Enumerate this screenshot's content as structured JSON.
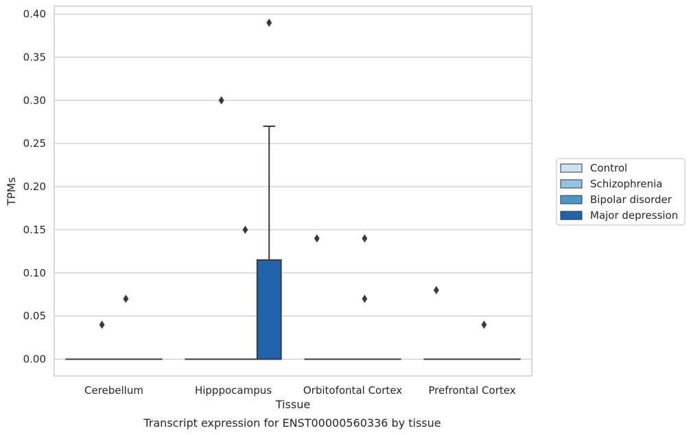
{
  "chart_data": {
    "type": "box",
    "title": "",
    "caption": "Transcript expression for ENST00000560336 by tissue",
    "xlabel": "Tissue",
    "ylabel": "TPMs",
    "ylim": [
      -0.02,
      0.41
    ],
    "yticks": [
      "0.00",
      "0.05",
      "0.10",
      "0.15",
      "0.20",
      "0.25",
      "0.30",
      "0.35",
      "0.40"
    ],
    "grid": true,
    "legend_position": "right",
    "categories": [
      "Cerebellum",
      "Hipppocampus",
      "Orbitofontal Cortex",
      "Prefrontal Cortex"
    ],
    "series": [
      {
        "name": "Control",
        "color": "#d0e1f2",
        "boxes": [
          {
            "min": 0,
            "q1": 0,
            "median": 0,
            "q3": 0,
            "max": 0,
            "outliers": []
          },
          {
            "min": 0,
            "q1": 0,
            "median": 0,
            "q3": 0,
            "max": 0,
            "outliers": []
          },
          {
            "min": 0,
            "q1": 0,
            "median": 0,
            "q3": 0,
            "max": 0,
            "outliers": [
              0.14
            ]
          },
          {
            "min": 0,
            "q1": 0,
            "median": 0,
            "q3": 0,
            "max": 0,
            "outliers": [
              0.08
            ]
          }
        ]
      },
      {
        "name": "Schizophrenia",
        "color": "#94c4df",
        "boxes": [
          {
            "min": 0,
            "q1": 0,
            "median": 0,
            "q3": 0,
            "max": 0,
            "outliers": [
              0.04
            ]
          },
          {
            "min": 0,
            "q1": 0,
            "median": 0,
            "q3": 0,
            "max": 0,
            "outliers": [
              0.3
            ]
          },
          {
            "min": 0,
            "q1": 0,
            "median": 0,
            "q3": 0,
            "max": 0,
            "outliers": []
          },
          {
            "min": 0,
            "q1": 0,
            "median": 0,
            "q3": 0,
            "max": 0,
            "outliers": []
          }
        ]
      },
      {
        "name": "Bipolar disorder",
        "color": "#4a98c9",
        "boxes": [
          {
            "min": 0,
            "q1": 0,
            "median": 0,
            "q3": 0,
            "max": 0,
            "outliers": [
              0.07
            ]
          },
          {
            "min": 0,
            "q1": 0,
            "median": 0,
            "q3": 0,
            "max": 0,
            "outliers": [
              0.15
            ]
          },
          {
            "min": 0,
            "q1": 0,
            "median": 0,
            "q3": 0,
            "max": 0,
            "outliers": [
              0.14,
              0.07
            ]
          },
          {
            "min": 0,
            "q1": 0,
            "median": 0,
            "q3": 0,
            "max": 0,
            "outliers": [
              0.04
            ]
          }
        ]
      },
      {
        "name": "Major depression",
        "color": "#2163aa",
        "boxes": [
          {
            "min": 0,
            "q1": 0,
            "median": 0,
            "q3": 0,
            "max": 0,
            "outliers": []
          },
          {
            "min": 0,
            "q1": 0,
            "median": 0,
            "q3": 0.115,
            "max": 0.27,
            "outliers": [
              0.39
            ]
          },
          {
            "min": 0,
            "q1": 0,
            "median": 0,
            "q3": 0,
            "max": 0,
            "outliers": []
          },
          {
            "min": 0,
            "q1": 0,
            "median": 0,
            "q3": 0,
            "max": 0,
            "outliers": []
          }
        ]
      }
    ]
  }
}
